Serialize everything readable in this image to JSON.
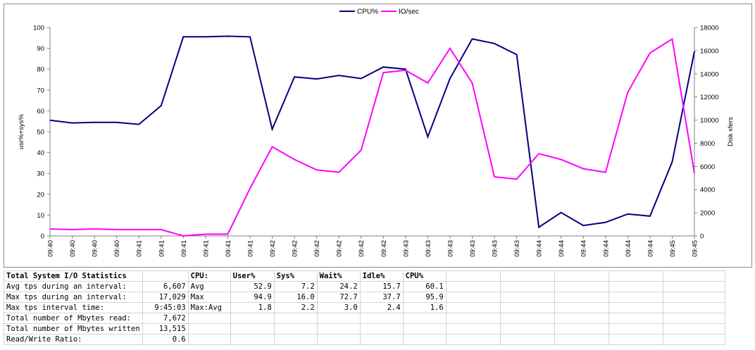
{
  "chart_data": {
    "type": "line",
    "x": [
      "09:40",
      "09:40",
      "09:40",
      "09:40",
      "09:41",
      "09:41",
      "09:41",
      "09:41",
      "09:41",
      "09:41",
      "09:42",
      "09:42",
      "09:42",
      "09:42",
      "09:42",
      "09:42",
      "09:43",
      "09:43",
      "09:43",
      "09:43",
      "09:43",
      "09:43",
      "09:44",
      "09:44",
      "09:44",
      "09:44",
      "09:44",
      "09:44",
      "09:45",
      "09:45"
    ],
    "series": [
      {
        "name": "CPU%",
        "axis": "left",
        "color": "#000080",
        "values": [
          55.5,
          54.2,
          54.5,
          54.5,
          53.5,
          62.5,
          95.5,
          95.5,
          95.8,
          95.5,
          51.2,
          76.3,
          75.3,
          77.0,
          75.5,
          81.0,
          80.0,
          47.5,
          75.5,
          94.5,
          92.3,
          87.0,
          4.2,
          11.2,
          5.0,
          6.5,
          10.5,
          9.5,
          35.5,
          88.5
        ]
      },
      {
        "name": "IO/sec",
        "axis": "right",
        "color": "#ff00ff",
        "values": [
          600,
          550,
          600,
          550,
          550,
          550,
          0,
          150,
          150,
          4100,
          7700,
          6600,
          5700,
          5500,
          7400,
          14100,
          14300,
          13200,
          16200,
          13200,
          5100,
          4900,
          7100,
          6600,
          5800,
          5500,
          12400,
          15800,
          17000,
          5400
        ]
      }
    ],
    "ylabel": "usr%+sys%",
    "ylim": [
      0,
      100
    ],
    "yticks": [
      0,
      10,
      20,
      30,
      40,
      50,
      60,
      70,
      80,
      90,
      100
    ],
    "y2label": "Disk xfers",
    "y2lim": [
      0,
      18000
    ],
    "y2ticks": [
      0,
      2000,
      4000,
      6000,
      8000,
      10000,
      12000,
      14000,
      16000,
      18000
    ],
    "legend": "top-center",
    "grid": false
  },
  "table": {
    "col_headers": [
      "Total System I/O Statistics",
      "",
      "CPU:",
      "User%",
      "Sys%",
      "Wait%",
      "Idle%",
      "CPU%"
    ],
    "rows": [
      [
        "Avg tps during an interval:",
        "6,607",
        "Avg",
        "52.9",
        "7.2",
        "24.2",
        "15.7",
        "60.1"
      ],
      [
        "Max tps during an interval:",
        "17,029",
        "Max",
        "94.9",
        "16.0",
        "72.7",
        "37.7",
        "95.9"
      ],
      [
        "Max tps interval time:",
        "9:45:03",
        "Max:Avg",
        "1.8",
        "2.2",
        "3.0",
        "2.4",
        "1.6"
      ],
      [
        "Total number of Mbytes read:",
        "7,672",
        "",
        "",
        "",
        "",
        "",
        ""
      ],
      [
        "Total number of Mbytes written",
        "13,515",
        "",
        "",
        "",
        "",
        "",
        ""
      ],
      [
        "Read/Write Ratio:",
        "0.6",
        "",
        "",
        "",
        "",
        "",
        ""
      ]
    ]
  }
}
